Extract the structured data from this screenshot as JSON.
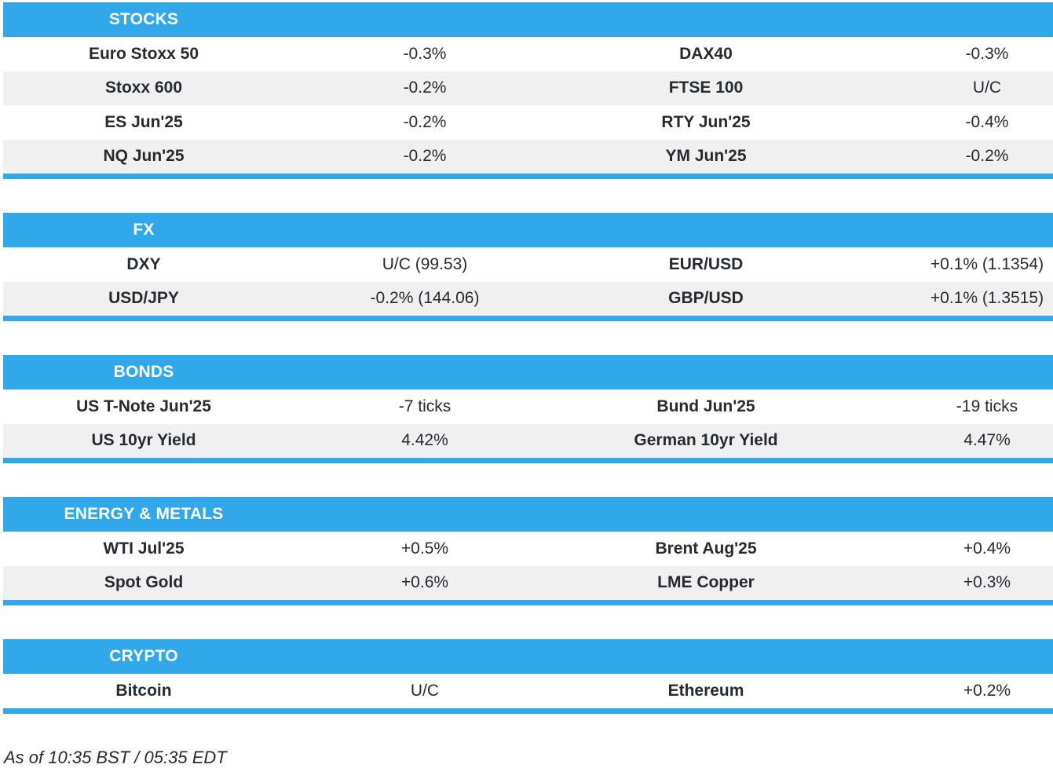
{
  "colors": {
    "accent_blue": "#31a8ea",
    "row_alt": "#f0f0f1",
    "text": "#262a31",
    "header_text": "#ffffff"
  },
  "sections": [
    {
      "title": "STOCKS",
      "rows": [
        [
          "Euro Stoxx 50",
          "-0.3%",
          "DAX40",
          "-0.3%"
        ],
        [
          "Stoxx 600",
          "-0.2%",
          "FTSE 100",
          "U/C"
        ],
        [
          "ES Jun'25",
          "-0.2%",
          "RTY Jun'25",
          "-0.4%"
        ],
        [
          "NQ Jun'25",
          "-0.2%",
          "YM Jun'25",
          "-0.2%"
        ]
      ]
    },
    {
      "title": "FX",
      "rows": [
        [
          "DXY",
          "U/C (99.53)",
          "EUR/USD",
          "+0.1% (1.1354)"
        ],
        [
          "USD/JPY",
          "-0.2% (144.06)",
          "GBP/USD",
          "+0.1% (1.3515)"
        ]
      ]
    },
    {
      "title": "BONDS",
      "rows": [
        [
          "US T-Note Jun'25",
          "-7 ticks",
          "Bund Jun'25",
          "-19 ticks"
        ],
        [
          "US 10yr Yield",
          "4.42%",
          "German 10yr Yield",
          "4.47%"
        ]
      ]
    },
    {
      "title": "ENERGY & METALS",
      "rows": [
        [
          "WTI Jul'25",
          "+0.5%",
          "Brent Aug'25",
          "+0.4%"
        ],
        [
          "Spot Gold",
          "+0.6%",
          "LME Copper",
          "+0.3%"
        ]
      ]
    },
    {
      "title": "CRYPTO",
      "rows": [
        [
          "Bitcoin",
          "U/C",
          "Ethereum",
          "+0.2%"
        ]
      ]
    }
  ],
  "footer": {
    "as_of": "As of 10:35 BST / 05:35 EDT"
  }
}
